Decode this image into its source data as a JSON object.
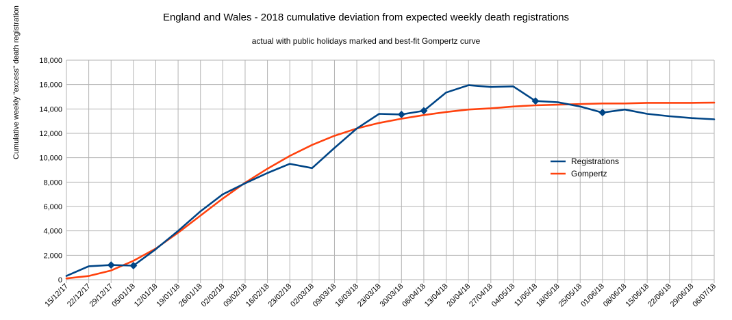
{
  "chart_data": {
    "type": "line",
    "title": "England and Wales - 2018 cumulative deviation from expected weekly death registrations",
    "subtitle": "actual with public holidays marked and best-fit Gompertz curve",
    "xlabel": "",
    "ylabel": "Cumulative weekly \"excess\" death registration",
    "ylim": [
      0,
      18000
    ],
    "yticks": [
      0,
      2000,
      4000,
      6000,
      8000,
      10000,
      12000,
      14000,
      16000,
      18000
    ],
    "ytick_labels": [
      "0",
      "2,000",
      "4,000",
      "6,000",
      "8,000",
      "10,000",
      "12,000",
      "14,000",
      "16,000",
      "18,000"
    ],
    "grid": true,
    "legend_position": "center-right",
    "categories": [
      "15/12/17",
      "22/12/17",
      "29/12/17",
      "05/01/18",
      "12/01/18",
      "19/01/18",
      "26/01/18",
      "02/02/18",
      "09/02/18",
      "16/02/18",
      "23/02/18",
      "02/03/18",
      "09/03/18",
      "16/03/18",
      "23/03/18",
      "30/03/18",
      "06/04/18",
      "13/04/18",
      "20/04/18",
      "27/04/18",
      "04/05/18",
      "11/05/18",
      "18/05/18",
      "25/05/18",
      "01/06/18",
      "08/06/18",
      "15/06/18",
      "22/06/18",
      "29/06/18",
      "06/07/18"
    ],
    "series": [
      {
        "name": "Registrations",
        "color": "#004586",
        "values": [
          300,
          1100,
          1200,
          1150,
          2500,
          4000,
          5600,
          7000,
          7900,
          8750,
          9500,
          9150,
          10800,
          12400,
          13600,
          13550,
          13850,
          15350,
          15950,
          15800,
          15850,
          14650,
          14550,
          14200,
          13700,
          13950,
          13600,
          13400,
          13250,
          13150
        ],
        "markers": [
          2,
          3,
          15,
          16,
          21,
          24
        ]
      },
      {
        "name": "Gompertz",
        "color": "#ff420e",
        "values": [
          100,
          300,
          750,
          1550,
          2550,
          3850,
          5250,
          6650,
          7950,
          9100,
          10150,
          11050,
          11800,
          12400,
          12850,
          13200,
          13500,
          13750,
          13950,
          14050,
          14200,
          14300,
          14350,
          14400,
          14450,
          14450,
          14500,
          14500,
          14500,
          14520
        ]
      }
    ]
  }
}
